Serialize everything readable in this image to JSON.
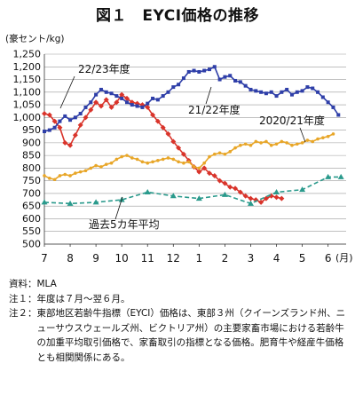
{
  "title": "図１　EYCI価格の推移",
  "y_unit": "(豪セント/kg)",
  "x_unit": "(月)",
  "notes": {
    "source_label": "資料：",
    "source_text": "MLA",
    "note1_label": "注１：",
    "note1_text": "年度は７月〜翌６月。",
    "note2_label": "注２：",
    "note2_text": "東部地区若齢牛指標（EYCI）価格は、東部３州（クイーンズランド州、ニューサウスウェールズ州、ビクトリア州）の主要家畜市場における若齢牛の加重平均取引価格で、家畜取引の指標となる価格。肥育牛や経産牛価格とも相関関係にある。"
  },
  "colors": {
    "fy2223": "#d9342b",
    "fy2122": "#2e3ea8",
    "fy2021": "#e8a628",
    "avg5": "#2a9a8c",
    "grid": "#9a9a9a",
    "axis": "#333333"
  },
  "chart_data": {
    "type": "line",
    "title": "",
    "xlabel": "",
    "ylabel": "(豪セント/kg)",
    "ylim": [
      500,
      1250
    ],
    "yticks": [
      500,
      550,
      600,
      650,
      700,
      750,
      800,
      850,
      900,
      950,
      1000,
      1050,
      1100,
      1150,
      1200,
      1250
    ],
    "x_months": [
      "7",
      "8",
      "9",
      "10",
      "11",
      "12",
      "1",
      "2",
      "3",
      "4",
      "5",
      "6"
    ],
    "x_unit": "(月)",
    "grid": "horizontal",
    "series": [
      {
        "name": "22/23年度",
        "color_key": "fy2223",
        "points": [
          [
            7.0,
            1015
          ],
          [
            7.2,
            1010
          ],
          [
            7.4,
            985
          ],
          [
            7.6,
            960
          ],
          [
            7.8,
            900
          ],
          [
            8.0,
            890
          ],
          [
            8.2,
            930
          ],
          [
            8.4,
            970
          ],
          [
            8.6,
            1000
          ],
          [
            8.8,
            1030
          ],
          [
            9.0,
            1060
          ],
          [
            9.2,
            1045
          ],
          [
            9.4,
            1070
          ],
          [
            9.6,
            1040
          ],
          [
            9.8,
            1060
          ],
          [
            10.0,
            1090
          ],
          [
            10.2,
            1075
          ],
          [
            10.4,
            1060
          ],
          [
            10.6,
            1055
          ],
          [
            10.8,
            1050
          ],
          [
            11.0,
            1040
          ],
          [
            11.2,
            1010
          ],
          [
            11.4,
            985
          ],
          [
            11.6,
            960
          ],
          [
            11.8,
            935
          ],
          [
            12.0,
            905
          ],
          [
            12.2,
            880
          ],
          [
            12.4,
            855
          ],
          [
            12.6,
            830
          ],
          [
            12.8,
            805
          ],
          [
            13.0,
            785
          ],
          [
            13.2,
            800
          ],
          [
            13.4,
            780
          ],
          [
            13.6,
            770
          ],
          [
            13.8,
            750
          ],
          [
            14.0,
            740
          ],
          [
            14.2,
            725
          ],
          [
            14.4,
            720
          ],
          [
            14.6,
            705
          ],
          [
            14.8,
            690
          ],
          [
            15.0,
            680
          ],
          [
            15.2,
            675
          ],
          [
            15.4,
            665
          ],
          [
            15.6,
            680
          ],
          [
            15.8,
            690
          ],
          [
            16.0,
            685
          ],
          [
            16.2,
            680
          ]
        ]
      },
      {
        "name": "21/22年度",
        "color_key": "fy2122",
        "points": [
          [
            7.0,
            945
          ],
          [
            7.2,
            950
          ],
          [
            7.4,
            960
          ],
          [
            7.6,
            985
          ],
          [
            7.8,
            1005
          ],
          [
            8.0,
            990
          ],
          [
            8.2,
            1000
          ],
          [
            8.4,
            1015
          ],
          [
            8.6,
            1040
          ],
          [
            8.8,
            1060
          ],
          [
            9.0,
            1090
          ],
          [
            9.2,
            1110
          ],
          [
            9.4,
            1100
          ],
          [
            9.6,
            1095
          ],
          [
            9.8,
            1085
          ],
          [
            10.0,
            1075
          ],
          [
            10.2,
            1060
          ],
          [
            10.4,
            1050
          ],
          [
            10.6,
            1045
          ],
          [
            10.8,
            1040
          ],
          [
            11.0,
            1055
          ],
          [
            11.2,
            1075
          ],
          [
            11.4,
            1070
          ],
          [
            11.6,
            1085
          ],
          [
            11.8,
            1100
          ],
          [
            12.0,
            1120
          ],
          [
            12.2,
            1130
          ],
          [
            12.4,
            1155
          ],
          [
            12.6,
            1180
          ],
          [
            12.8,
            1185
          ],
          [
            13.0,
            1180
          ],
          [
            13.2,
            1185
          ],
          [
            13.4,
            1190
          ],
          [
            13.6,
            1200
          ],
          [
            13.8,
            1150
          ],
          [
            14.0,
            1160
          ],
          [
            14.2,
            1165
          ],
          [
            14.4,
            1145
          ],
          [
            14.6,
            1140
          ],
          [
            14.8,
            1125
          ],
          [
            15.0,
            1110
          ],
          [
            15.2,
            1105
          ],
          [
            15.4,
            1100
          ],
          [
            15.6,
            1095
          ],
          [
            15.8,
            1100
          ],
          [
            16.0,
            1085
          ],
          [
            16.2,
            1100
          ],
          [
            16.4,
            1110
          ],
          [
            16.6,
            1090
          ],
          [
            16.8,
            1100
          ],
          [
            17.0,
            1105
          ],
          [
            17.2,
            1120
          ],
          [
            17.4,
            1115
          ],
          [
            17.6,
            1100
          ],
          [
            17.8,
            1080
          ],
          [
            18.0,
            1060
          ],
          [
            18.2,
            1040
          ],
          [
            18.4,
            1010
          ]
        ]
      },
      {
        "name": "2020/21年度",
        "color_key": "fy2021",
        "points": [
          [
            7.0,
            770
          ],
          [
            7.2,
            760
          ],
          [
            7.4,
            755
          ],
          [
            7.6,
            770
          ],
          [
            7.8,
            775
          ],
          [
            8.0,
            770
          ],
          [
            8.2,
            780
          ],
          [
            8.4,
            785
          ],
          [
            8.6,
            790
          ],
          [
            8.8,
            800
          ],
          [
            9.0,
            810
          ],
          [
            9.2,
            805
          ],
          [
            9.4,
            815
          ],
          [
            9.6,
            820
          ],
          [
            9.8,
            835
          ],
          [
            10.0,
            845
          ],
          [
            10.2,
            850
          ],
          [
            10.4,
            840
          ],
          [
            10.6,
            835
          ],
          [
            10.8,
            825
          ],
          [
            11.0,
            820
          ],
          [
            11.2,
            825
          ],
          [
            11.4,
            830
          ],
          [
            11.6,
            835
          ],
          [
            11.8,
            840
          ],
          [
            12.0,
            835
          ],
          [
            12.2,
            825
          ],
          [
            12.4,
            820
          ],
          [
            12.6,
            825
          ],
          [
            12.8,
            805
          ],
          [
            13.0,
            800
          ],
          [
            13.2,
            820
          ],
          [
            13.4,
            845
          ],
          [
            13.6,
            855
          ],
          [
            13.8,
            860
          ],
          [
            14.0,
            855
          ],
          [
            14.2,
            865
          ],
          [
            14.4,
            880
          ],
          [
            14.6,
            890
          ],
          [
            14.8,
            895
          ],
          [
            15.0,
            890
          ],
          [
            15.2,
            905
          ],
          [
            15.4,
            900
          ],
          [
            15.6,
            905
          ],
          [
            15.8,
            890
          ],
          [
            16.0,
            895
          ],
          [
            16.2,
            905
          ],
          [
            16.4,
            900
          ],
          [
            16.6,
            890
          ],
          [
            16.8,
            895
          ],
          [
            17.0,
            900
          ],
          [
            17.2,
            910
          ],
          [
            17.4,
            905
          ],
          [
            17.6,
            915
          ],
          [
            17.8,
            920
          ],
          [
            18.0,
            925
          ],
          [
            18.2,
            935
          ]
        ]
      },
      {
        "name": "過去5カ年平均",
        "color_key": "avg5",
        "points": [
          [
            7.0,
            665
          ],
          [
            8.0,
            660
          ],
          [
            9.0,
            665
          ],
          [
            10.0,
            675
          ],
          [
            11.0,
            705
          ],
          [
            12.0,
            690
          ],
          [
            13.0,
            680
          ],
          [
            14.0,
            695
          ],
          [
            15.0,
            660
          ],
          [
            16.0,
            705
          ],
          [
            17.0,
            715
          ],
          [
            18.0,
            765
          ],
          [
            18.5,
            765
          ]
        ]
      }
    ],
    "annotations": [
      {
        "text": "22/23年度",
        "series": "22/23年度"
      },
      {
        "text": "21/22年度",
        "series": "21/22年度"
      },
      {
        "text": "2020/21年度",
        "series": "2020/21年度"
      },
      {
        "text": "過去5カ年平均",
        "series": "過去5カ年平均"
      }
    ]
  }
}
